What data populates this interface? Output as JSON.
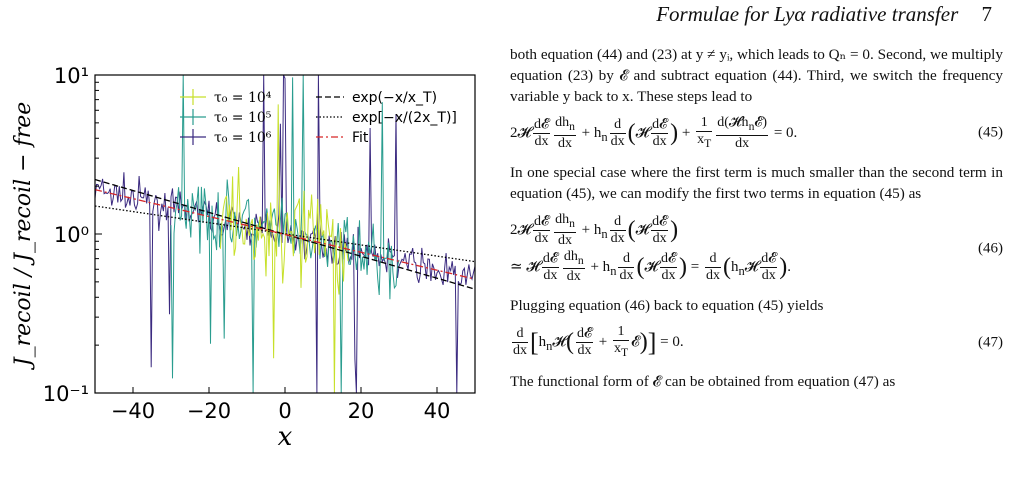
{
  "header": {
    "title": "Formulae for Lyα radiative transfer",
    "page": "7"
  },
  "chart_data": {
    "type": "line",
    "xlabel": "x",
    "ylabel": "J_recoil / J_recoil − free",
    "xlim": [
      -50,
      50
    ],
    "ylim_log10": [
      -1,
      1
    ],
    "log_y": true,
    "x_ticks": [
      "−40",
      "−20",
      "0",
      "20",
      "40"
    ],
    "y_ticks": [
      "10⁻¹",
      "10⁰",
      "10¹"
    ],
    "legend_left": [
      {
        "label": "τ₀ = 10⁴",
        "color": "#c7e02a"
      },
      {
        "label": "τ₀ = 10⁵",
        "color": "#2a9d8f"
      },
      {
        "label": "τ₀ = 10⁶",
        "color": "#3b2a80"
      }
    ],
    "legend_right": [
      {
        "label": "exp(−x/x_T)",
        "style": "dashed"
      },
      {
        "label": "exp[−x/(2x_T)]",
        "style": "dotted"
      },
      {
        "label": "Fit",
        "style": "dashdot",
        "color": "#d62728"
      }
    ],
    "series": [
      {
        "name": "τ₀ = 10⁴",
        "x_range": [
          -17,
          17
        ]
      },
      {
        "name": "τ₀ = 10⁵",
        "x_range": [
          -30,
          30
        ]
      },
      {
        "name": "τ₀ = 10⁶",
        "x_range": [
          -50,
          50
        ]
      },
      {
        "name": "exp(−x/x_T)",
        "points": [
          [
            -50,
            2.2
          ],
          [
            50,
            0.45
          ]
        ]
      },
      {
        "name": "exp[−x/(2x_T)]",
        "points": [
          [
            -50,
            1.5
          ],
          [
            50,
            0.67
          ]
        ]
      },
      {
        "name": "Fit",
        "points": [
          [
            -50,
            1.9
          ],
          [
            50,
            0.52
          ]
        ]
      }
    ]
  },
  "text": {
    "p1": "both equation (44) and (23) at y ≠ yᵢ, which leads to Qₙ = 0. Second, we multiply equation (23) by 𝓔 and subtract equation (44). Third, we switch the frequency variable y back to x. These steps lead to",
    "eq45_num": "(45)",
    "p2": "In one special case where the first term is much smaller than the second term in equation (45), we can modify the first two terms in equation (45) as",
    "eq46_num": "(46)",
    "p3": "Plugging equation (46) back to equation (45) yields",
    "eq47_num": "(47)",
    "p4": "The functional form of 𝓔 can be obtained from equation (47) as"
  }
}
